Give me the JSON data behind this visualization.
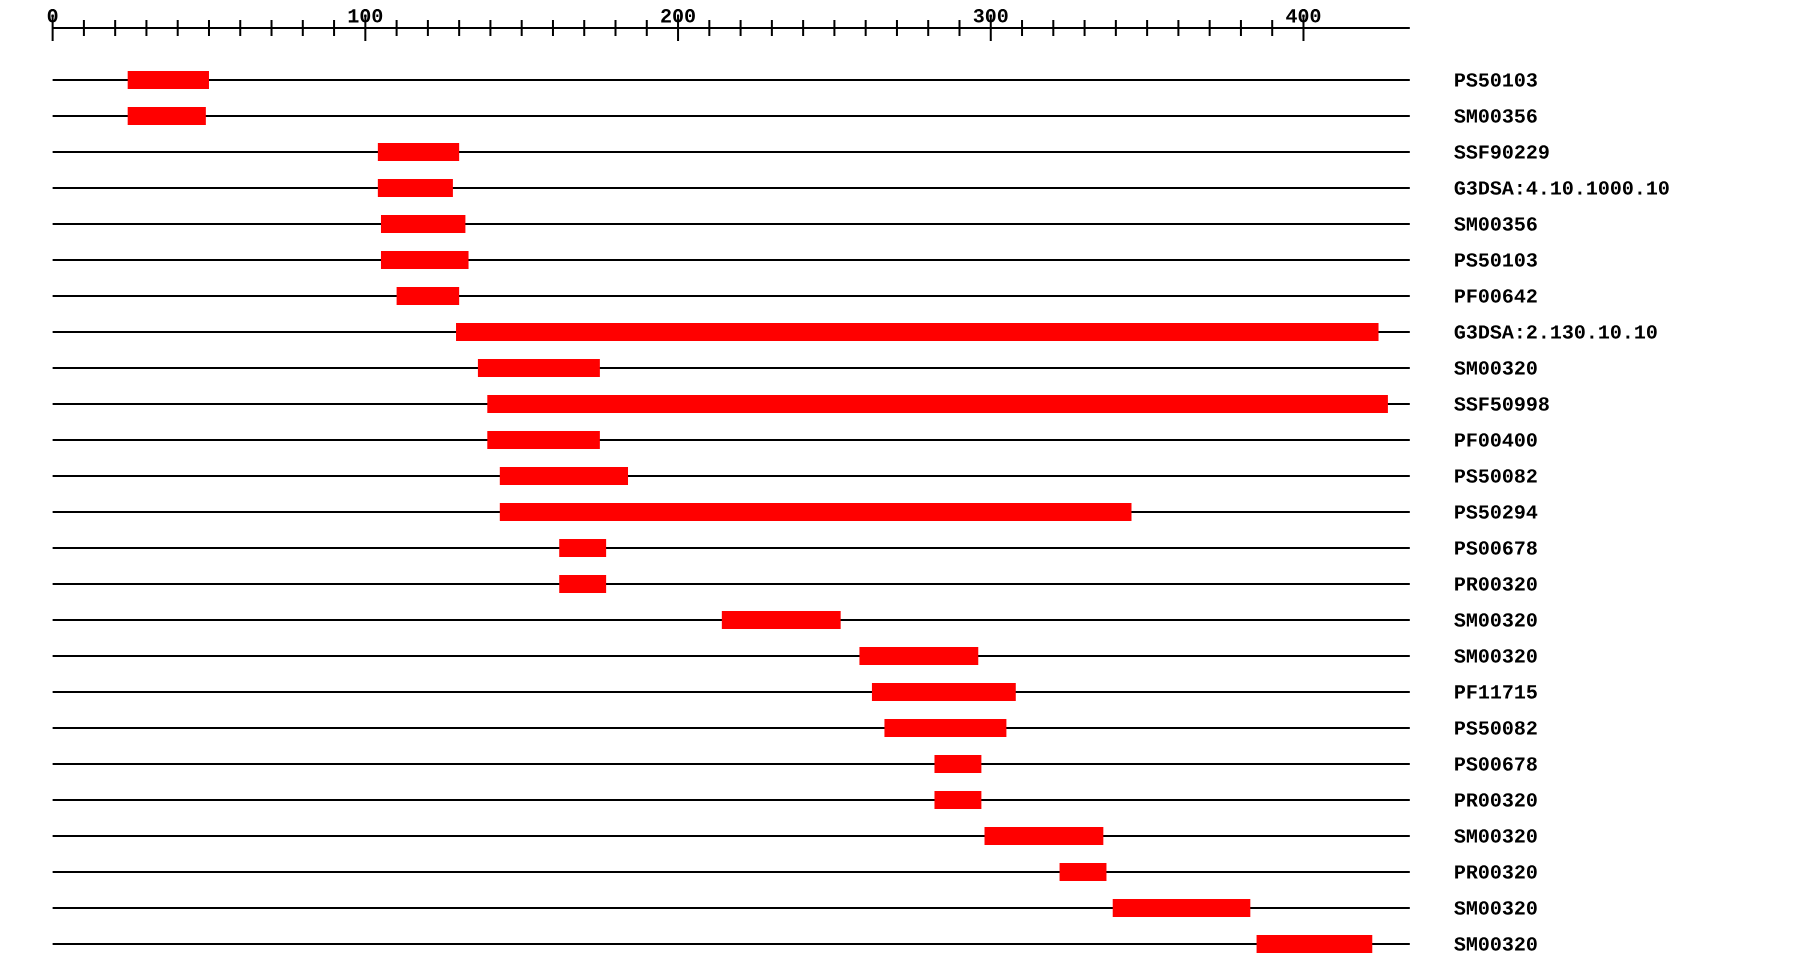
{
  "chart_data": {
    "type": "bar",
    "orientation": "horizontal",
    "grid": "y",
    "color": "#ff0000",
    "categories": [
      "PS50103",
      "SM00356",
      "SSF90229",
      "G3DSA:4.10.1000.10",
      "SM00356",
      "PS50103",
      "PF00642",
      "G3DSA:2.130.10.10",
      "SM00320",
      "SSF50998",
      "PF00400",
      "PS50082",
      "PS50294",
      "PS00678",
      "PR00320",
      "SM00320",
      "SM00320",
      "PF11715",
      "PS50082",
      "PS00678",
      "PR00320",
      "SM00320",
      "PR00320",
      "SM00320",
      "SM00320"
    ],
    "base": [
      24,
      24,
      104,
      104,
      105,
      105,
      110,
      129,
      136,
      139,
      139,
      143,
      143,
      162,
      162,
      214,
      258,
      262,
      266,
      282,
      282,
      298,
      322,
      339,
      385
    ],
    "values": [
      26,
      25,
      26,
      24,
      27,
      28,
      20,
      295,
      39,
      288,
      36,
      41,
      202,
      15,
      15,
      38,
      38,
      46,
      39,
      15,
      15,
      38,
      15,
      44,
      37
    ],
    "xlim": [
      0,
      434
    ],
    "xticks": [
      0,
      100,
      200,
      300,
      400
    ]
  }
}
